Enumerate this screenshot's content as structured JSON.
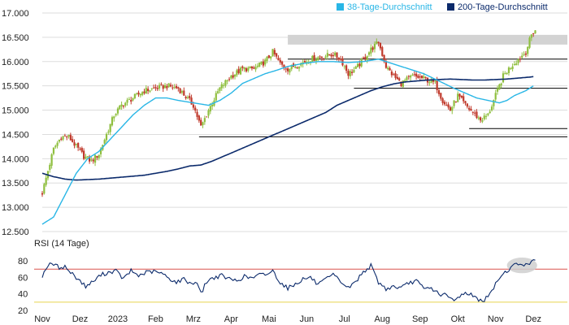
{
  "chart_data": [
    {
      "type": "candlestick",
      "panel": "price",
      "legend_placement": "top-right",
      "legend": [
        {
          "label": "38-Tage-Durchschnitt",
          "color": "#29b6e6"
        },
        {
          "label": "200-Tage-Durchschnitt",
          "color": "#0b2a6b"
        }
      ],
      "y_ticks": [
        "17.000",
        "16.500",
        "16.000",
        "15.500",
        "15.000",
        "14.500",
        "14.000",
        "13.500",
        "13.000",
        "12.500"
      ],
      "ylim": [
        12500,
        17000
      ],
      "x_ticks": [
        "Nov",
        "Dez",
        "2023",
        "Feb",
        "Mrz",
        "Apr",
        "Mai",
        "Jun",
        "Jul",
        "Aug",
        "Sep",
        "Okt",
        "Nov",
        "Dez"
      ],
      "x_tick_positions": [
        0,
        1,
        2,
        3,
        4,
        5,
        6,
        7,
        8,
        9,
        10,
        11,
        12,
        13
      ],
      "xlim": [
        0,
        13.9
      ],
      "colors": {
        "up": "#8fbf3f",
        "down": "#c0392b",
        "grid": "#dddddd",
        "support": "#000000",
        "zone": "#d3d3d3"
      },
      "close_anchors": [
        [
          0.0,
          13300
        ],
        [
          0.15,
          13750
        ],
        [
          0.3,
          14200
        ],
        [
          0.5,
          14450
        ],
        [
          0.7,
          14450
        ],
        [
          0.9,
          14250
        ],
        [
          1.1,
          14050
        ],
        [
          1.3,
          13950
        ],
        [
          1.5,
          14100
        ],
        [
          1.7,
          14500
        ],
        [
          1.9,
          14900
        ],
        [
          2.1,
          15100
        ],
        [
          2.4,
          15250
        ],
        [
          2.7,
          15400
        ],
        [
          3.0,
          15450
        ],
        [
          3.3,
          15500
        ],
        [
          3.6,
          15450
        ],
        [
          4.0,
          15100
        ],
        [
          4.2,
          14650
        ],
        [
          4.4,
          15000
        ],
        [
          4.7,
          15450
        ],
        [
          5.0,
          15700
        ],
        [
          5.3,
          15850
        ],
        [
          5.6,
          15850
        ],
        [
          5.9,
          16000
        ],
        [
          6.1,
          16200
        ],
        [
          6.3,
          15950
        ],
        [
          6.5,
          15850
        ],
        [
          6.8,
          15950
        ],
        [
          7.1,
          16050
        ],
        [
          7.4,
          16100
        ],
        [
          7.7,
          16150
        ],
        [
          7.9,
          16050
        ],
        [
          8.1,
          15750
        ],
        [
          8.3,
          15850
        ],
        [
          8.5,
          16050
        ],
        [
          8.7,
          16250
        ],
        [
          8.9,
          16400
        ],
        [
          9.1,
          15900
        ],
        [
          9.3,
          15700
        ],
        [
          9.5,
          15550
        ],
        [
          9.8,
          15700
        ],
        [
          10.1,
          15650
        ],
        [
          10.4,
          15550
        ],
        [
          10.6,
          15200
        ],
        [
          10.8,
          15000
        ],
        [
          11.0,
          15300
        ],
        [
          11.2,
          15100
        ],
        [
          11.4,
          14950
        ],
        [
          11.6,
          14800
        ],
        [
          11.8,
          14900
        ],
        [
          12.0,
          15300
        ],
        [
          12.2,
          15700
        ],
        [
          12.4,
          15900
        ],
        [
          12.6,
          16050
        ],
        [
          12.8,
          16200
        ],
        [
          12.95,
          16550
        ],
        [
          13.05,
          16650
        ]
      ],
      "ma38_anchors": [
        [
          0.0,
          12650
        ],
        [
          0.3,
          12800
        ],
        [
          0.6,
          13250
        ],
        [
          0.9,
          13700
        ],
        [
          1.2,
          14000
        ],
        [
          1.5,
          14150
        ],
        [
          1.8,
          14400
        ],
        [
          2.1,
          14650
        ],
        [
          2.4,
          14900
        ],
        [
          2.7,
          15100
        ],
        [
          3.0,
          15250
        ],
        [
          3.3,
          15250
        ],
        [
          3.6,
          15200
        ],
        [
          4.0,
          15150
        ],
        [
          4.4,
          15100
        ],
        [
          4.7,
          15200
        ],
        [
          5.0,
          15350
        ],
        [
          5.3,
          15550
        ],
        [
          5.6,
          15650
        ],
        [
          5.9,
          15750
        ],
        [
          6.2,
          15820
        ],
        [
          6.5,
          15900
        ],
        [
          6.9,
          15960
        ],
        [
          7.3,
          16000
        ],
        [
          7.7,
          16000
        ],
        [
          8.1,
          15980
        ],
        [
          8.5,
          16000
        ],
        [
          8.9,
          16050
        ],
        [
          9.3,
          15950
        ],
        [
          9.7,
          15850
        ],
        [
          10.1,
          15750
        ],
        [
          10.5,
          15600
        ],
        [
          10.9,
          15450
        ],
        [
          11.2,
          15350
        ],
        [
          11.5,
          15250
        ],
        [
          11.8,
          15200
        ],
        [
          12.1,
          15150
        ],
        [
          12.3,
          15200
        ],
        [
          12.5,
          15300
        ],
        [
          12.8,
          15400
        ],
        [
          13.0,
          15500
        ]
      ],
      "ma200_anchors": [
        [
          0.0,
          13700
        ],
        [
          0.3,
          13630
        ],
        [
          0.6,
          13580
        ],
        [
          0.9,
          13560
        ],
        [
          1.2,
          13570
        ],
        [
          1.5,
          13580
        ],
        [
          1.8,
          13600
        ],
        [
          2.1,
          13620
        ],
        [
          2.4,
          13640
        ],
        [
          2.7,
          13660
        ],
        [
          3.0,
          13700
        ],
        [
          3.3,
          13740
        ],
        [
          3.6,
          13790
        ],
        [
          3.9,
          13850
        ],
        [
          4.2,
          13870
        ],
        [
          4.5,
          13950
        ],
        [
          4.8,
          14050
        ],
        [
          5.1,
          14150
        ],
        [
          5.4,
          14250
        ],
        [
          5.7,
          14350
        ],
        [
          6.0,
          14450
        ],
        [
          6.3,
          14550
        ],
        [
          6.6,
          14650
        ],
        [
          6.9,
          14750
        ],
        [
          7.2,
          14850
        ],
        [
          7.5,
          14950
        ],
        [
          7.8,
          15100
        ],
        [
          8.1,
          15200
        ],
        [
          8.4,
          15300
        ],
        [
          8.7,
          15400
        ],
        [
          9.0,
          15480
        ],
        [
          9.3,
          15540
        ],
        [
          9.6,
          15580
        ],
        [
          9.9,
          15600
        ],
        [
          10.2,
          15620
        ],
        [
          10.5,
          15630
        ],
        [
          10.8,
          15640
        ],
        [
          11.1,
          15630
        ],
        [
          11.4,
          15620
        ],
        [
          11.7,
          15620
        ],
        [
          12.0,
          15630
        ],
        [
          12.3,
          15640
        ],
        [
          12.6,
          15660
        ],
        [
          12.9,
          15680
        ],
        [
          13.0,
          15690
        ]
      ],
      "resistance_zone": {
        "x": [
          6.5,
          13.9
        ],
        "y": [
          16350,
          16550
        ]
      },
      "annotations": {
        "hlines": [
          {
            "x": [
              6.5,
              13.9
            ],
            "y": 16050
          },
          {
            "x": [
              8.25,
              13.9
            ],
            "y": 15450
          },
          {
            "x": [
              11.3,
              13.9
            ],
            "y": 14620
          },
          {
            "x": [
              4.15,
              13.9
            ],
            "y": 14450
          }
        ]
      }
    },
    {
      "type": "line",
      "panel": "indicator",
      "title": "RSI (14 Tage)",
      "y_ticks": [
        "80",
        "60",
        "40",
        "20"
      ],
      "ylim": [
        20,
        85
      ],
      "reference_lines": [
        {
          "y": 70,
          "color": "#d9534f"
        },
        {
          "y": 30,
          "color": "#e8d44d"
        }
      ],
      "highlight": {
        "x": [
          12.3,
          13.1
        ],
        "y": [
          65,
          84
        ]
      },
      "rsi_anchors": [
        [
          0.0,
          62
        ],
        [
          0.15,
          75
        ],
        [
          0.3,
          76
        ],
        [
          0.45,
          72
        ],
        [
          0.6,
          73
        ],
        [
          0.75,
          66
        ],
        [
          0.95,
          58
        ],
        [
          1.15,
          49
        ],
        [
          1.35,
          55
        ],
        [
          1.55,
          63
        ],
        [
          1.75,
          66
        ],
        [
          1.95,
          68
        ],
        [
          2.15,
          58
        ],
        [
          2.35,
          68
        ],
        [
          2.55,
          62
        ],
        [
          2.75,
          66
        ],
        [
          2.95,
          67
        ],
        [
          3.15,
          65
        ],
        [
          3.35,
          59
        ],
        [
          3.55,
          54
        ],
        [
          3.75,
          58
        ],
        [
          3.95,
          52
        ],
        [
          4.1,
          55
        ],
        [
          4.2,
          40
        ],
        [
          4.35,
          55
        ],
        [
          4.55,
          60
        ],
        [
          4.75,
          62
        ],
        [
          4.95,
          58
        ],
        [
          5.15,
          56
        ],
        [
          5.35,
          61
        ],
        [
          5.55,
          59
        ],
        [
          5.75,
          63
        ],
        [
          5.95,
          64
        ],
        [
          6.1,
          68
        ],
        [
          6.3,
          54
        ],
        [
          6.5,
          47
        ],
        [
          6.7,
          52
        ],
        [
          6.9,
          58
        ],
        [
          7.1,
          60
        ],
        [
          7.3,
          51
        ],
        [
          7.5,
          57
        ],
        [
          7.7,
          63
        ],
        [
          7.9,
          55
        ],
        [
          8.1,
          47
        ],
        [
          8.3,
          55
        ],
        [
          8.5,
          67
        ],
        [
          8.7,
          74
        ],
        [
          8.9,
          54
        ],
        [
          9.1,
          46
        ],
        [
          9.3,
          49
        ],
        [
          9.5,
          47
        ],
        [
          9.7,
          53
        ],
        [
          9.9,
          56
        ],
        [
          10.1,
          46
        ],
        [
          10.3,
          47
        ],
        [
          10.5,
          40
        ],
        [
          10.7,
          38
        ],
        [
          10.9,
          31
        ],
        [
          11.1,
          40
        ],
        [
          11.3,
          41
        ],
        [
          11.5,
          34
        ],
        [
          11.7,
          32
        ],
        [
          11.9,
          43
        ],
        [
          12.1,
          60
        ],
        [
          12.3,
          68
        ],
        [
          12.5,
          75
        ],
        [
          12.7,
          77
        ],
        [
          12.85,
          74
        ],
        [
          13.0,
          82
        ],
        [
          13.05,
          83
        ]
      ]
    }
  ]
}
